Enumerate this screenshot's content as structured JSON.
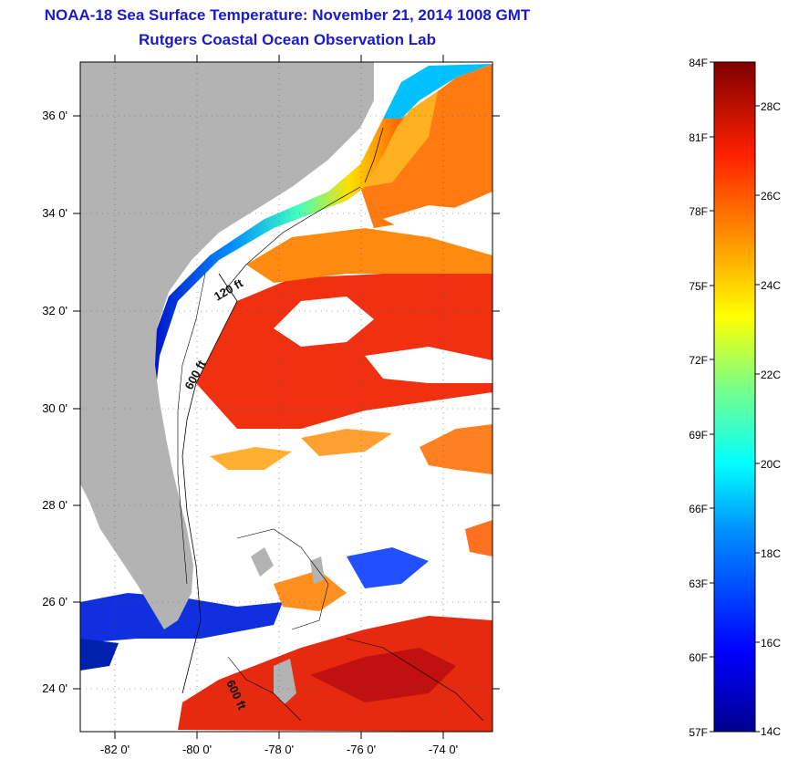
{
  "header": {
    "title": "NOAA-18 Sea Surface Temperature:  November 21, 2014 1008 GMT",
    "subtitle": "Rutgers Coastal Ocean Observation Lab"
  },
  "map": {
    "lon_ticks": [
      "-82 0'",
      "-80 0'",
      "-78 0'",
      "-76 0'",
      "-74 0'"
    ],
    "lat_ticks": [
      "36 0'",
      "34 0'",
      "32 0'",
      "30 0'",
      "28 0'",
      "26 0'",
      "24 0'"
    ],
    "contour_labels": [
      "120 ft",
      "600 ft",
      "600 ft"
    ],
    "colors": {
      "land": "#b3b3b3",
      "cloud": "#ffffff"
    }
  },
  "colorbar": {
    "fahrenheit_labels": [
      "84F",
      "81F",
      "78F",
      "75F",
      "72F",
      "69F",
      "66F",
      "63F",
      "60F",
      "57F"
    ],
    "celsius_labels": [
      "28C",
      "26C",
      "24C",
      "22C",
      "20C",
      "18C",
      "16C",
      "14C"
    ],
    "min_f": 57,
    "max_f": 84
  }
}
